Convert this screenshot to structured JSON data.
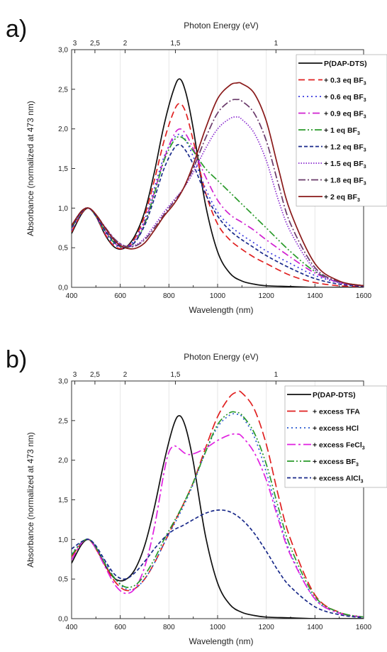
{
  "chart_data": [
    {
      "type": "line",
      "panel_label": "a)",
      "title": "",
      "xlabel": "Wavelength (nm)",
      "ylabel": "Absorbance (normalized at 473 nm)",
      "top_axis_label": "Photon Energy (eV)",
      "xlim": [
        400,
        1600
      ],
      "ylim": [
        0.0,
        3.0
      ],
      "x_ticks": [
        "400",
        "600",
        "800",
        "1000",
        "1200",
        "1400",
        "1600"
      ],
      "y_ticks": [
        "0,0",
        "0,5",
        "1,0",
        "1,5",
        "2,0",
        "2,5",
        "3,0"
      ],
      "top_ticks": [
        {
          "label": "3",
          "energy": 3.0
        },
        {
          "label": "2,5",
          "energy": 2.5
        },
        {
          "label": "2",
          "energy": 2.0
        },
        {
          "label": "1,5",
          "energy": 1.5
        },
        {
          "label": "1",
          "energy": 1.0
        }
      ],
      "grid": true,
      "legend_position": "top-right",
      "series": [
        {
          "name": "P(DAP-DTS)",
          "color": "#111111",
          "dash": "solid",
          "x": [
            400,
            440,
            470,
            500,
            540,
            580,
            620,
            660,
            700,
            740,
            780,
            820,
            845,
            870,
            900,
            950,
            1000,
            1050,
            1100,
            1150,
            1200,
            1300,
            1400,
            1500,
            1600
          ],
          "y": [
            0.68,
            0.92,
            1.0,
            0.9,
            0.65,
            0.5,
            0.5,
            0.65,
            0.95,
            1.45,
            2.05,
            2.5,
            2.63,
            2.45,
            2.0,
            1.05,
            0.45,
            0.18,
            0.08,
            0.04,
            0.02,
            0.01,
            0.0,
            0.0,
            0.0
          ]
        },
        {
          "name": "+ 0.3 eq BF",
          "sub": "3",
          "color": "#e02020",
          "dash": "9,5",
          "x": [
            400,
            440,
            470,
            500,
            540,
            580,
            620,
            660,
            700,
            740,
            780,
            820,
            845,
            870,
            900,
            950,
            1000,
            1050,
            1100,
            1150,
            1200,
            1300,
            1400,
            1500,
            1600
          ],
          "y": [
            0.7,
            0.93,
            1.0,
            0.9,
            0.66,
            0.51,
            0.5,
            0.62,
            0.9,
            1.35,
            1.85,
            2.22,
            2.32,
            2.2,
            1.85,
            1.2,
            0.8,
            0.6,
            0.48,
            0.38,
            0.3,
            0.15,
            0.06,
            0.02,
            0.01
          ]
        },
        {
          "name": "+ 0.6 eq BF",
          "sub": "3",
          "color": "#3a3ae0",
          "dash": "2,4",
          "x": [
            400,
            440,
            470,
            500,
            540,
            580,
            620,
            660,
            700,
            740,
            780,
            820,
            845,
            870,
            900,
            950,
            1000,
            1050,
            1100,
            1150,
            1200,
            1300,
            1400,
            1500,
            1600
          ],
          "y": [
            0.72,
            0.94,
            1.0,
            0.9,
            0.68,
            0.53,
            0.51,
            0.6,
            0.85,
            1.25,
            1.65,
            1.88,
            1.93,
            1.85,
            1.65,
            1.25,
            0.95,
            0.78,
            0.66,
            0.56,
            0.46,
            0.3,
            0.15,
            0.06,
            0.02
          ]
        },
        {
          "name": "+ 0.9 eq BF",
          "sub": "3",
          "color": "#d020d0",
          "dash": "10,4,2,4",
          "x": [
            400,
            440,
            470,
            500,
            540,
            580,
            620,
            660,
            700,
            740,
            780,
            820,
            845,
            870,
            900,
            950,
            1000,
            1050,
            1100,
            1150,
            1200,
            1300,
            1400,
            1500,
            1600
          ],
          "y": [
            0.74,
            0.95,
            1.0,
            0.9,
            0.7,
            0.55,
            0.5,
            0.58,
            0.82,
            1.2,
            1.62,
            1.92,
            2.0,
            1.93,
            1.75,
            1.4,
            1.1,
            0.92,
            0.82,
            0.72,
            0.6,
            0.38,
            0.18,
            0.06,
            0.02
          ]
        },
        {
          "name": "+ 1 eq BF",
          "sub": "3",
          "color": "#2a9a2a",
          "dash": "10,3,2,3,2,3",
          "x": [
            400,
            440,
            470,
            500,
            540,
            580,
            620,
            660,
            700,
            740,
            780,
            820,
            845,
            870,
            900,
            950,
            1000,
            1050,
            1100,
            1150,
            1200,
            1300,
            1400,
            1500,
            1600
          ],
          "y": [
            0.75,
            0.95,
            1.0,
            0.9,
            0.7,
            0.55,
            0.5,
            0.57,
            0.8,
            1.18,
            1.6,
            1.85,
            1.9,
            1.85,
            1.72,
            1.5,
            1.35,
            1.2,
            1.05,
            0.9,
            0.75,
            0.45,
            0.2,
            0.07,
            0.02
          ]
        },
        {
          "name": "+ 1.2 eq BF",
          "sub": "3",
          "color": "#1a2a8a",
          "dash": "5,3",
          "x": [
            400,
            440,
            470,
            500,
            540,
            580,
            620,
            660,
            700,
            740,
            780,
            820,
            845,
            870,
            900,
            950,
            1000,
            1050,
            1100,
            1150,
            1200,
            1300,
            1400,
            1500,
            1600
          ],
          "y": [
            0.76,
            0.95,
            1.0,
            0.9,
            0.71,
            0.56,
            0.5,
            0.57,
            0.78,
            1.12,
            1.5,
            1.75,
            1.8,
            1.72,
            1.55,
            1.18,
            0.9,
            0.72,
            0.6,
            0.5,
            0.4,
            0.24,
            0.11,
            0.04,
            0.01
          ]
        },
        {
          "name": "+ 1.5 eq BF",
          "sub": "3",
          "color": "#8a2ad0",
          "dash": "1.5,2",
          "x": [
            400,
            440,
            470,
            500,
            540,
            580,
            620,
            660,
            700,
            740,
            780,
            820,
            860,
            900,
            950,
            1000,
            1050,
            1080,
            1100,
            1150,
            1200,
            1250,
            1300,
            1400,
            1500,
            1600
          ],
          "y": [
            0.78,
            0.96,
            1.0,
            0.92,
            0.75,
            0.6,
            0.52,
            0.53,
            0.62,
            0.78,
            0.95,
            1.1,
            1.25,
            1.45,
            1.75,
            2.0,
            2.13,
            2.15,
            2.12,
            1.95,
            1.6,
            1.1,
            0.7,
            0.22,
            0.06,
            0.02
          ]
        },
        {
          "name": "+ 1.8 eq BF",
          "sub": "3",
          "color": "#6a3a6a",
          "dash": "10,3,2,3",
          "x": [
            400,
            440,
            470,
            500,
            540,
            580,
            620,
            660,
            700,
            740,
            780,
            820,
            860,
            900,
            950,
            1000,
            1050,
            1080,
            1100,
            1150,
            1200,
            1250,
            1300,
            1400,
            1500,
            1600
          ],
          "y": [
            0.78,
            0.96,
            1.0,
            0.92,
            0.75,
            0.6,
            0.52,
            0.52,
            0.6,
            0.75,
            0.92,
            1.08,
            1.25,
            1.5,
            1.88,
            2.2,
            2.35,
            2.37,
            2.35,
            2.2,
            1.85,
            1.3,
            0.8,
            0.25,
            0.07,
            0.02
          ]
        },
        {
          "name": "+ 2 eq BF",
          "sub": "3",
          "color": "#8a1a1a",
          "dash": "solid",
          "x": [
            400,
            440,
            470,
            500,
            540,
            580,
            620,
            660,
            700,
            740,
            780,
            820,
            860,
            900,
            950,
            1000,
            1050,
            1080,
            1100,
            1150,
            1200,
            1250,
            1300,
            1400,
            1500,
            1600
          ],
          "y": [
            0.78,
            0.96,
            1.0,
            0.92,
            0.74,
            0.58,
            0.5,
            0.49,
            0.56,
            0.72,
            0.9,
            1.05,
            1.25,
            1.55,
            2.0,
            2.38,
            2.55,
            2.58,
            2.57,
            2.45,
            2.1,
            1.5,
            0.95,
            0.3,
            0.08,
            0.02
          ]
        }
      ]
    },
    {
      "type": "line",
      "panel_label": "b)",
      "title": "",
      "xlabel": "Wavelength (nm)",
      "ylabel": "Absorbance (normalized at 473 nm)",
      "top_axis_label": "Photon Energy (eV)",
      "xlim": [
        400,
        1600
      ],
      "ylim": [
        0.0,
        3.0
      ],
      "x_ticks": [
        "400",
        "600",
        "800",
        "1000",
        "1200",
        "1400",
        "1600"
      ],
      "y_ticks": [
        "0,0",
        "0,5",
        "1,0",
        "1,5",
        "2,0",
        "2,5",
        "3,0"
      ],
      "top_ticks": [
        {
          "label": "3",
          "energy": 3.0
        },
        {
          "label": "2,5",
          "energy": 2.5
        },
        {
          "label": "2",
          "energy": 2.0
        },
        {
          "label": "1,5",
          "energy": 1.5
        },
        {
          "label": "1",
          "energy": 1.0
        }
      ],
      "grid": true,
      "legend_position": "top-right",
      "series": [
        {
          "name": "P(DAP-DTS)",
          "color": "#111111",
          "dash": "solid",
          "x": [
            400,
            440,
            470,
            500,
            540,
            580,
            620,
            660,
            700,
            740,
            780,
            820,
            845,
            870,
            900,
            950,
            1000,
            1050,
            1100,
            1150,
            1200,
            1300,
            1400,
            1500,
            1600
          ],
          "y": [
            0.7,
            0.93,
            1.0,
            0.9,
            0.66,
            0.5,
            0.49,
            0.62,
            0.92,
            1.4,
            1.98,
            2.45,
            2.56,
            2.4,
            1.98,
            1.05,
            0.45,
            0.18,
            0.08,
            0.04,
            0.02,
            0.01,
            0.0,
            0.0,
            0.0
          ]
        },
        {
          "name": "+ excess TFA",
          "color": "#e02020",
          "dash": "12,5",
          "x": [
            400,
            440,
            470,
            500,
            540,
            580,
            620,
            660,
            700,
            740,
            780,
            820,
            860,
            900,
            950,
            1000,
            1050,
            1080,
            1100,
            1150,
            1200,
            1250,
            1300,
            1400,
            1500,
            1600
          ],
          "y": [
            0.78,
            0.95,
            1.0,
            0.88,
            0.66,
            0.46,
            0.36,
            0.38,
            0.5,
            0.7,
            0.95,
            1.2,
            1.45,
            1.72,
            2.15,
            2.55,
            2.8,
            2.86,
            2.85,
            2.65,
            2.2,
            1.55,
            1.0,
            0.3,
            0.08,
            0.02
          ]
        },
        {
          "name": "+ excess HCl",
          "color": "#2a5ad0",
          "dash": "2,4",
          "x": [
            400,
            440,
            470,
            500,
            540,
            580,
            620,
            660,
            700,
            740,
            780,
            820,
            860,
            900,
            950,
            1000,
            1050,
            1080,
            1100,
            1150,
            1200,
            1250,
            1300,
            1400,
            1500,
            1600
          ],
          "y": [
            0.82,
            0.96,
            1.0,
            0.9,
            0.7,
            0.5,
            0.38,
            0.38,
            0.5,
            0.7,
            0.95,
            1.18,
            1.42,
            1.7,
            2.1,
            2.42,
            2.57,
            2.58,
            2.55,
            2.3,
            1.85,
            1.3,
            0.82,
            0.25,
            0.07,
            0.02
          ]
        },
        {
          "name": "+ excess FeCl",
          "sub": "3",
          "color": "#e020e0",
          "dash": "12,4,3,4",
          "x": [
            400,
            440,
            470,
            500,
            540,
            580,
            620,
            660,
            700,
            740,
            780,
            800,
            820,
            840,
            870,
            900,
            950,
            1000,
            1050,
            1080,
            1100,
            1150,
            1200,
            1250,
            1300,
            1400,
            1500,
            1600
          ],
          "y": [
            0.74,
            0.95,
            1.0,
            0.88,
            0.64,
            0.42,
            0.32,
            0.38,
            0.65,
            1.15,
            1.85,
            2.1,
            2.18,
            2.15,
            2.08,
            2.08,
            2.15,
            2.25,
            2.32,
            2.33,
            2.3,
            2.1,
            1.75,
            1.25,
            0.8,
            0.25,
            0.07,
            0.02
          ]
        },
        {
          "name": "+ excess BF",
          "sub": "3",
          "color": "#2a9a2a",
          "dash": "10,3,2,3,2,3",
          "x": [
            400,
            440,
            470,
            500,
            540,
            580,
            620,
            660,
            700,
            740,
            780,
            820,
            860,
            900,
            950,
            1000,
            1050,
            1080,
            1100,
            1150,
            1200,
            1250,
            1300,
            1400,
            1500,
            1600
          ],
          "y": [
            0.8,
            0.96,
            1.0,
            0.9,
            0.68,
            0.5,
            0.4,
            0.42,
            0.55,
            0.75,
            1.0,
            1.22,
            1.45,
            1.72,
            2.1,
            2.45,
            2.6,
            2.6,
            2.57,
            2.35,
            1.95,
            1.4,
            0.9,
            0.28,
            0.08,
            0.02
          ]
        },
        {
          "name": "+ excess AlCl",
          "sub": "3",
          "color": "#1a2a8a",
          "dash": "5,3",
          "x": [
            400,
            440,
            470,
            500,
            540,
            580,
            620,
            660,
            700,
            740,
            780,
            820,
            860,
            900,
            950,
            1000,
            1050,
            1100,
            1150,
            1200,
            1250,
            1300,
            1400,
            1500,
            1600
          ],
          "y": [
            0.88,
            0.97,
            1.0,
            0.92,
            0.72,
            0.55,
            0.5,
            0.58,
            0.72,
            0.88,
            1.02,
            1.12,
            1.18,
            1.25,
            1.33,
            1.37,
            1.35,
            1.25,
            1.08,
            0.85,
            0.6,
            0.4,
            0.15,
            0.05,
            0.01
          ]
        }
      ]
    }
  ]
}
